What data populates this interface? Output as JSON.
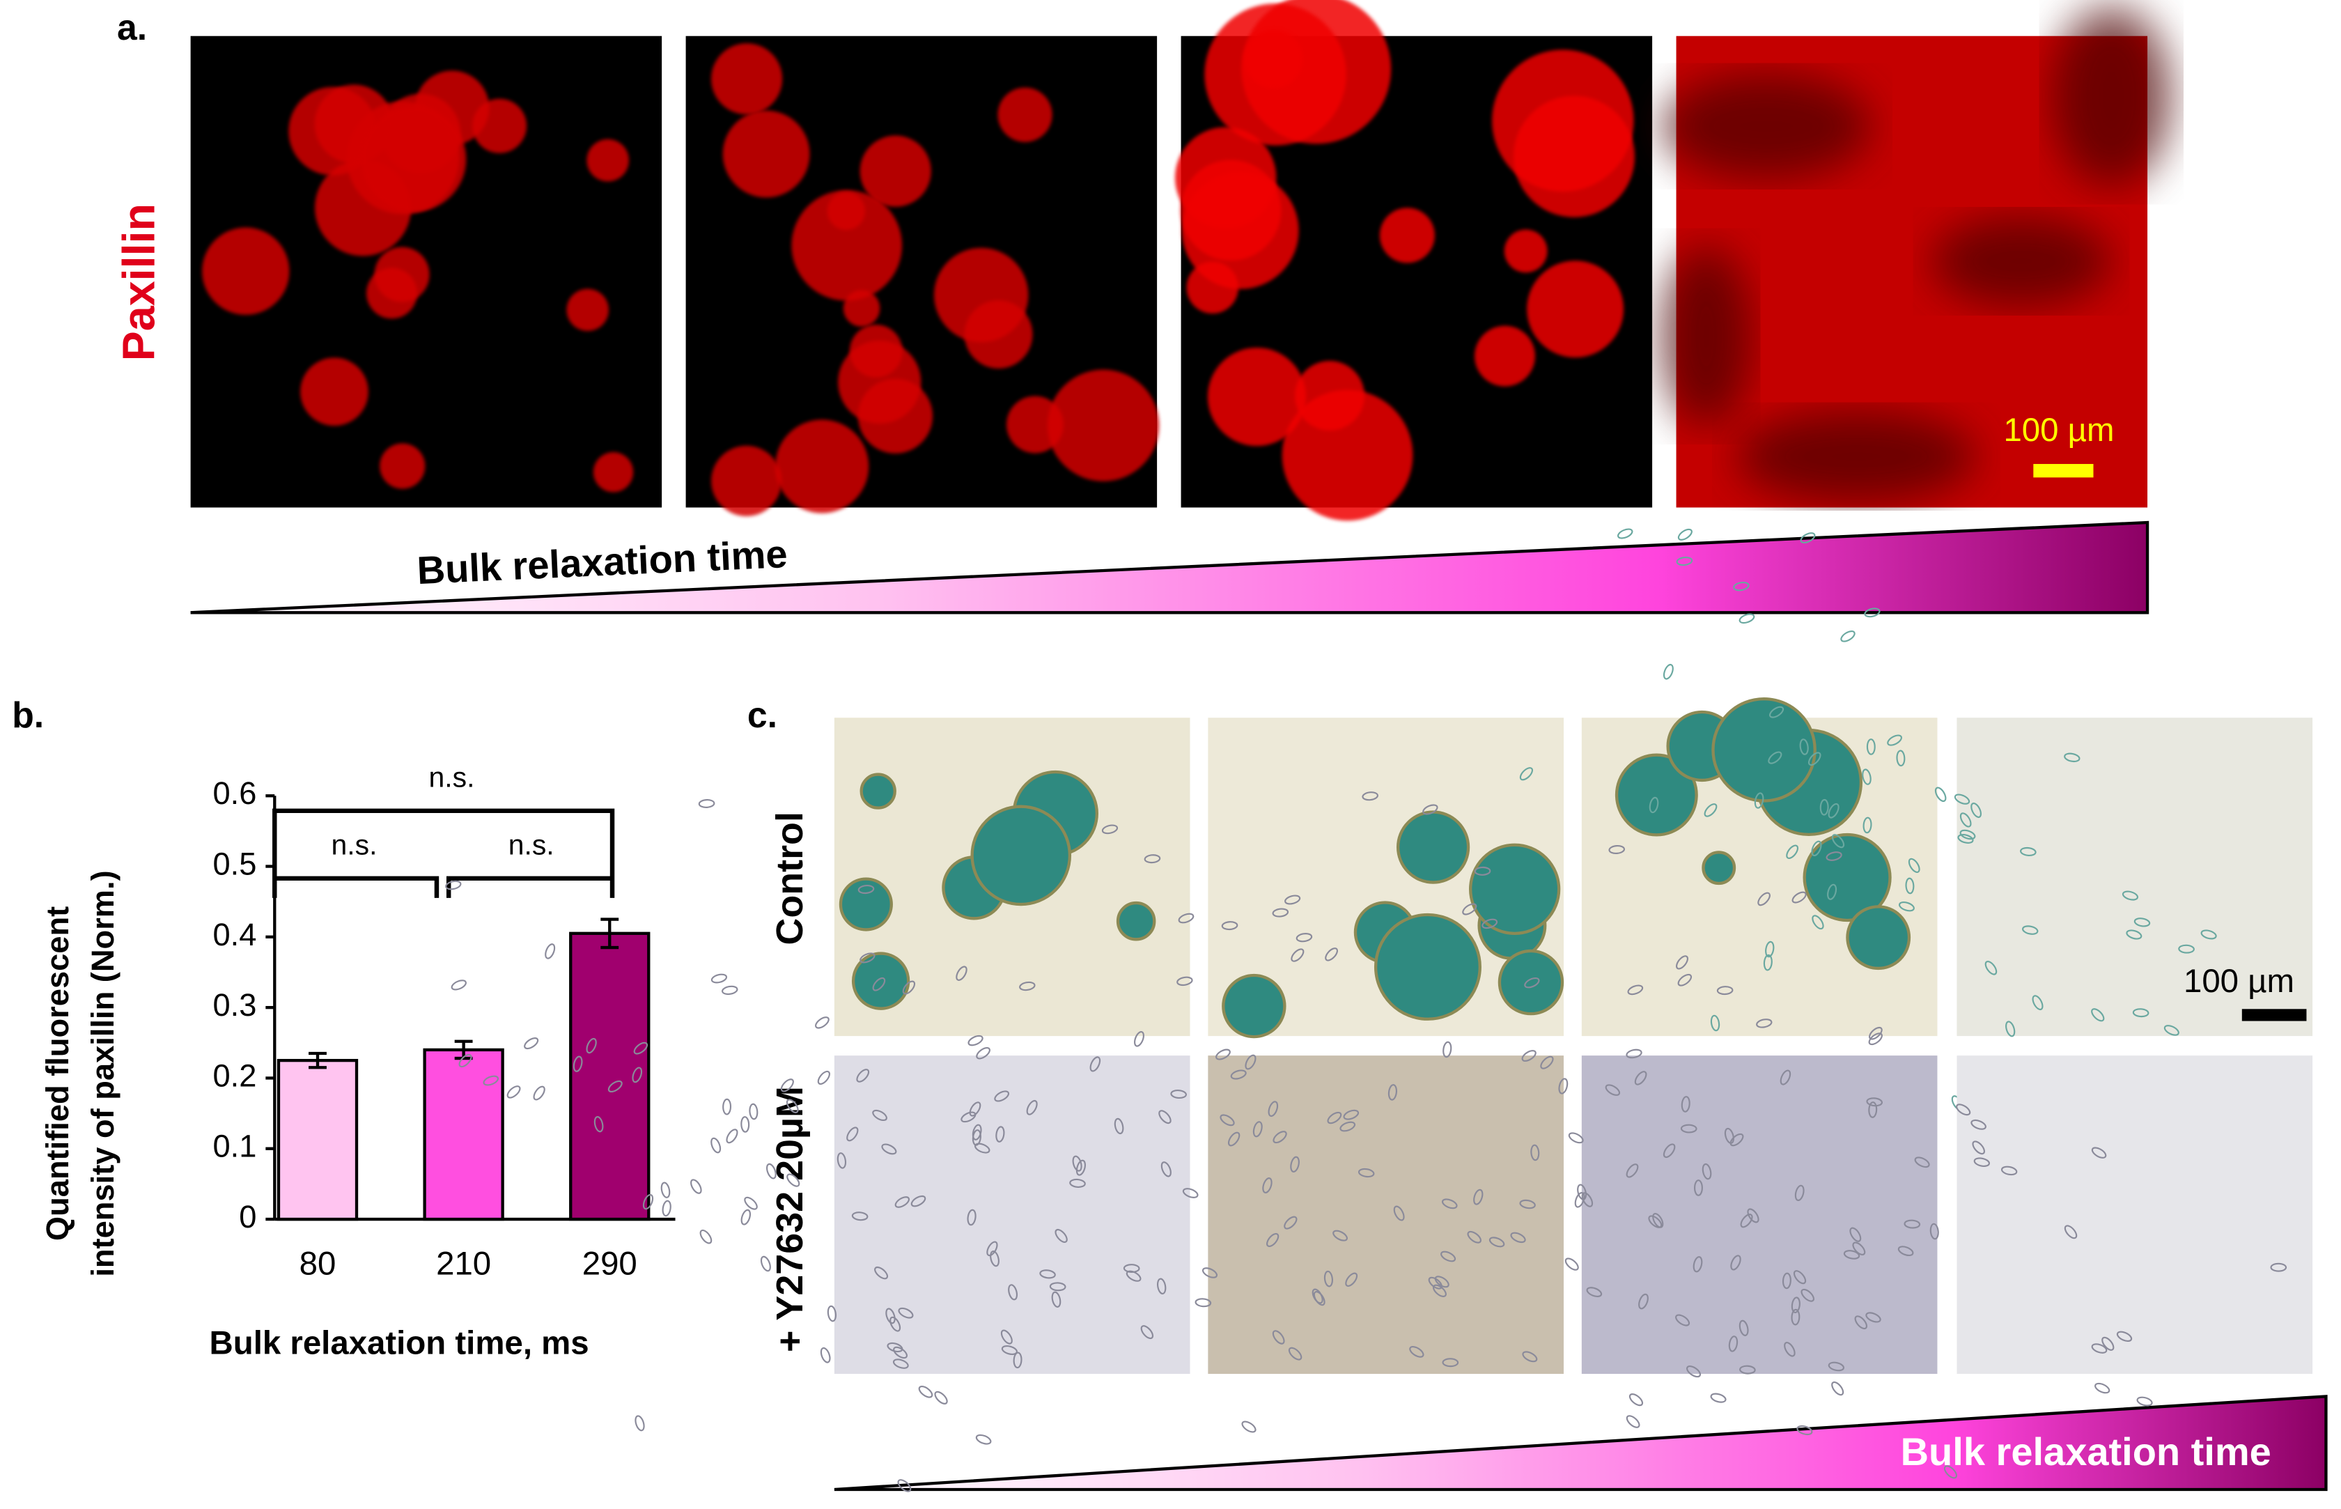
{
  "panel_a": {
    "label": "a.",
    "stain": "Paxillin",
    "scale_bar": "100 µm",
    "gradient_label": "Bulk relaxation time"
  },
  "chart_data": {
    "type": "bar",
    "label": "b.",
    "categories": [
      "80",
      "210",
      "290"
    ],
    "values": [
      0.225,
      0.24,
      0.405
    ],
    "errors": [
      0.01,
      0.012,
      0.02
    ],
    "colors": [
      "#ffc4f0",
      "#ff4fe0",
      "#a0006e"
    ],
    "ylim": [
      0,
      0.6
    ],
    "yticks": [
      0,
      0.1,
      0.2,
      0.3,
      0.4,
      0.5,
      0.6
    ],
    "xlabel": "Bulk relaxation time, ms",
    "ylabel": [
      "Quantified fluorescent",
      "intensity of paxillin (Norm.)"
    ],
    "annotations": [
      "n.s.",
      "n.s.",
      "n.s."
    ]
  },
  "panel_c": {
    "label": "c.",
    "rows": [
      "Control",
      "+ Y27632 20µM"
    ],
    "scale_bar": "100 µm",
    "gradient_label": "Bulk relaxation time"
  }
}
